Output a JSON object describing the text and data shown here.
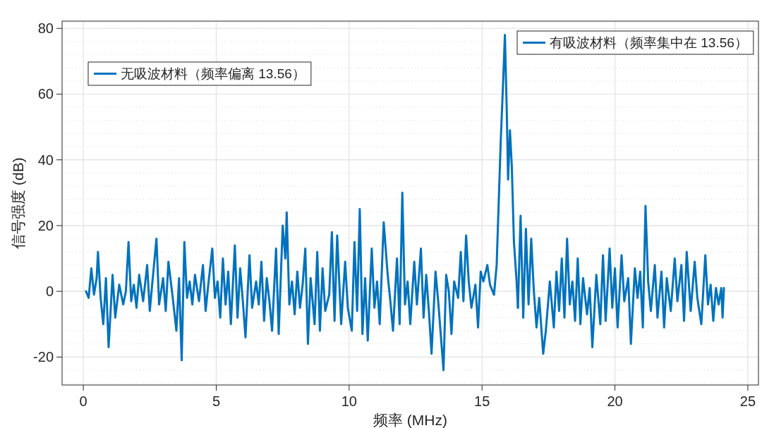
{
  "chart_data": {
    "type": "line",
    "xlabel": "频率 (MHz)",
    "ylabel": "信号强度 (dB)",
    "xlim": [
      -0.8,
      25.4
    ],
    "ylim": [
      -28.5,
      82.2
    ],
    "xticks": [
      0,
      5,
      10,
      15,
      20,
      25
    ],
    "yticks": [
      -20,
      0,
      20,
      40,
      60,
      80
    ],
    "grid": true,
    "legend": "top",
    "line_style": "solid",
    "marker": "none",
    "series": [
      {
        "name": "无吸波材料（频率偏离 13.56）",
        "color": "#0072bd",
        "x": [
          0.1,
          0.2,
          0.3,
          0.4,
          0.5,
          0.55,
          0.65,
          0.75,
          0.85,
          0.95,
          1.1,
          1.2,
          1.35,
          1.5,
          1.6,
          1.7,
          1.8,
          1.9,
          2.0,
          2.1,
          2.25,
          2.4,
          2.5,
          2.6,
          2.75,
          2.85,
          3.0,
          3.1,
          3.2,
          3.35,
          3.5,
          3.6,
          3.7,
          3.8,
          3.9,
          4.0,
          4.1,
          4.2,
          4.35,
          4.5,
          4.6,
          4.7,
          4.85,
          4.95,
          5.05,
          5.15,
          5.25,
          5.35,
          5.45,
          5.55,
          5.7,
          5.8,
          5.9,
          6.0,
          6.1,
          6.25,
          6.35,
          6.5,
          6.6,
          6.7,
          6.8,
          6.9,
          7.0,
          7.1,
          7.25,
          7.35,
          7.5,
          7.6,
          7.65,
          7.75,
          7.85,
          7.95,
          8.05,
          8.15,
          8.25,
          8.35,
          8.45,
          8.55,
          8.7,
          8.8,
          8.9,
          9.0,
          9.1,
          9.25,
          9.35,
          9.45,
          9.55,
          9.7,
          9.85,
          9.95,
          10.1,
          10.2,
          10.3,
          10.4,
          10.5,
          10.6,
          10.7,
          10.85,
          10.95,
          11.05,
          11.15,
          11.3,
          11.45,
          11.55,
          11.65,
          11.8,
          11.9,
          12.0,
          12.1,
          12.2,
          12.3,
          12.45,
          12.55,
          12.7,
          12.8,
          12.9,
          13.0,
          13.1,
          13.25,
          13.35,
          13.55,
          13.65,
          13.75,
          13.85,
          13.95,
          14.1,
          14.2,
          14.3,
          14.4,
          14.5,
          14.6,
          14.75,
          14.85,
          14.95,
          15.05,
          15.2,
          15.3,
          15.45,
          15.9,
          16.35,
          16.45,
          16.55,
          16.65,
          16.75,
          16.85,
          16.95,
          17.05,
          17.15,
          17.3,
          17.4,
          17.55,
          17.7,
          17.8,
          17.9,
          18.0,
          18.1,
          18.2,
          18.3,
          18.4,
          18.5,
          18.6,
          18.7,
          18.8,
          18.95,
          19.05,
          19.15,
          19.3,
          19.45,
          19.55,
          19.65,
          19.8,
          19.9,
          20.0,
          20.1,
          20.25,
          20.35,
          20.5,
          20.6,
          20.75,
          20.85,
          20.95,
          21.05,
          21.15,
          21.25,
          21.35,
          21.5,
          21.6,
          21.75,
          21.85,
          21.95,
          22.1,
          22.25,
          22.35,
          22.5,
          22.6,
          22.7,
          22.85,
          23.0,
          23.1,
          23.25,
          23.4,
          23.5,
          23.6,
          23.7,
          23.8,
          23.9,
          24.0,
          24.05,
          24.1
        ],
        "values": [
          0,
          -2,
          7,
          -1,
          4,
          12,
          -2,
          -10,
          4,
          -17,
          5,
          -8,
          2,
          -4,
          0,
          15,
          -3,
          2,
          -5,
          5,
          -3,
          8,
          -6,
          3,
          16,
          -4,
          4,
          -6,
          9,
          -1,
          -12,
          4,
          -21,
          15,
          -2,
          3,
          -4,
          5,
          -3,
          8,
          -6,
          2,
          13,
          -2,
          3,
          -8,
          10,
          -4,
          6,
          -10,
          14,
          -8,
          7,
          -3,
          -14,
          11,
          -5,
          3,
          -4,
          9,
          -9,
          4,
          -3,
          -12,
          13,
          -13,
          20,
          10,
          24,
          -4,
          3,
          -7,
          6,
          -5,
          2,
          13,
          -16,
          4,
          -10,
          12,
          -12,
          7,
          -6,
          -1,
          18,
          -9,
          17,
          -10,
          9,
          -5,
          -12,
          15,
          -6,
          25,
          -13,
          4,
          -15,
          13,
          -5,
          3,
          -10,
          21,
          5,
          -3,
          -12,
          10,
          -10,
          30,
          -4,
          3,
          -10,
          9,
          -4,
          13,
          -8,
          5,
          -6,
          -19,
          6,
          -3,
          -24,
          5,
          0,
          -13,
          3,
          -2,
          12,
          -3,
          17,
          3,
          -5,
          2,
          -11,
          6,
          3,
          8,
          2,
          -1,
          null,
          -5,
          23,
          -8,
          19,
          -4,
          16,
          0,
          -11,
          -2,
          -19,
          -12,
          3,
          -11,
          6,
          -6,
          10,
          -8,
          16,
          -4,
          3,
          -9,
          10,
          -10,
          4,
          -7,
          1,
          -17,
          5,
          -10,
          11,
          -9,
          13,
          -5,
          7,
          -11,
          11,
          -3,
          4,
          -16,
          7,
          -2,
          6,
          -11,
          26,
          3,
          -6,
          8,
          -8,
          6,
          -11,
          4,
          -6,
          10,
          -3,
          8,
          -9,
          12,
          -6,
          9,
          -2,
          -10,
          11,
          -4,
          2,
          -9,
          1,
          -4,
          1,
          -8,
          1
        ]
      },
      {
        "name": "有吸波材料（频率集中在 13.56）",
        "color": "#0072bd",
        "x": [
          15.45,
          15.55,
          15.7,
          15.8,
          15.86,
          15.93,
          15.98,
          16.05,
          16.12,
          16.2,
          16.3,
          16.35
        ],
        "values": [
          -1,
          8,
          45,
          65,
          78,
          55,
          34,
          49,
          38,
          15,
          3,
          -5
        ]
      }
    ]
  }
}
